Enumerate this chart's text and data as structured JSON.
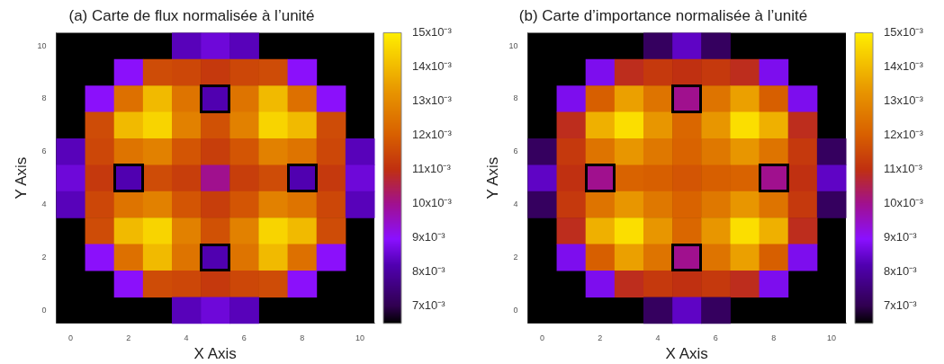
{
  "chart_data": [
    {
      "type": "heatmap",
      "title": "(a) Carte de flux normalisée à l’unité",
      "xlabel": "X Axis",
      "ylabel": "Y Axis",
      "categories": [
        "0",
        null,
        "2",
        null,
        "4",
        null,
        "6",
        null,
        "8",
        null,
        "10"
      ],
      "y_categories": [
        "10",
        null,
        "8",
        null,
        "6",
        null,
        "4",
        null,
        "2",
        null,
        "0"
      ],
      "cells": [
        [
          null,
          null,
          null,
          null,
          0.0083,
          0.0086,
          0.0083,
          null,
          null,
          null,
          null
        ],
        [
          null,
          null,
          0.009,
          0.0116,
          0.0115,
          0.0112,
          0.0115,
          0.0116,
          0.009,
          null,
          null
        ],
        [
          null,
          0.009,
          0.0124,
          0.014,
          0.0125,
          0.0082,
          0.0125,
          0.014,
          0.0124,
          0.009,
          null
        ],
        [
          null,
          0.0116,
          0.014,
          0.0145,
          0.0128,
          0.0117,
          0.0128,
          0.0145,
          0.014,
          0.0116,
          null
        ],
        [
          0.0083,
          0.0115,
          0.0125,
          0.0128,
          0.0118,
          0.0113,
          0.0118,
          0.0128,
          0.0125,
          0.0115,
          0.0083
        ],
        [
          0.0086,
          0.0112,
          0.0082,
          0.0116,
          0.0113,
          0.01,
          0.0113,
          0.0116,
          0.0082,
          0.0112,
          0.0086
        ],
        [
          0.0083,
          0.0115,
          0.0125,
          0.0128,
          0.0118,
          0.0113,
          0.0118,
          0.0128,
          0.0125,
          0.0115,
          0.0083
        ],
        [
          null,
          0.0116,
          0.014,
          0.0145,
          0.0128,
          0.0117,
          0.0128,
          0.0145,
          0.014,
          0.0116,
          null
        ],
        [
          null,
          0.009,
          0.0124,
          0.014,
          0.0125,
          0.0082,
          0.0125,
          0.014,
          0.0124,
          0.009,
          null
        ],
        [
          null,
          null,
          0.009,
          0.0116,
          0.0115,
          0.0112,
          0.0115,
          0.0116,
          0.009,
          null,
          null
        ],
        [
          null,
          null,
          null,
          null,
          0.0083,
          0.0086,
          0.0083,
          null,
          null,
          null,
          null
        ]
      ],
      "clim": [
        0.0065,
        0.015
      ],
      "cticks": [
        {
          "value": 0.007,
          "label": "7x10⁻³"
        },
        {
          "value": 0.008,
          "label": "8x10⁻³"
        },
        {
          "value": 0.009,
          "label": "9x10⁻³"
        },
        {
          "value": 0.01,
          "label": "10x10⁻³"
        },
        {
          "value": 0.011,
          "label": "11x10⁻³"
        },
        {
          "value": 0.012,
          "label": "12x10⁻³"
        },
        {
          "value": 0.013,
          "label": "13x10⁻³"
        },
        {
          "value": 0.014,
          "label": "14x10⁻³"
        },
        {
          "value": 0.015,
          "label": "15x10⁻³"
        }
      ]
    },
    {
      "type": "heatmap",
      "title": "(b) Carte d’importance normalisée à l’unité",
      "xlabel": "X Axis",
      "ylabel": "Y Axis",
      "categories": [
        "0",
        null,
        "2",
        null,
        "4",
        null,
        "6",
        null,
        "8",
        null,
        "10"
      ],
      "y_categories": [
        "10",
        null,
        "8",
        null,
        "6",
        null,
        "4",
        null,
        "2",
        null,
        "0"
      ],
      "cells": [
        [
          null,
          null,
          null,
          null,
          0.0072,
          0.0084,
          0.0072,
          null,
          null,
          null,
          null
        ],
        [
          null,
          null,
          0.0088,
          0.0109,
          0.0112,
          0.011,
          0.0112,
          0.0109,
          0.0088,
          null,
          null
        ],
        [
          null,
          0.0088,
          0.012,
          0.0135,
          0.0125,
          0.01,
          0.0125,
          0.0135,
          0.012,
          0.0088,
          null
        ],
        [
          null,
          0.0109,
          0.0138,
          0.0147,
          0.0133,
          0.0122,
          0.0133,
          0.0147,
          0.0138,
          0.0109,
          null
        ],
        [
          0.0072,
          0.0112,
          0.0125,
          0.0133,
          0.0126,
          0.0121,
          0.0126,
          0.0133,
          0.0125,
          0.0112,
          0.0072
        ],
        [
          0.0084,
          0.011,
          0.01,
          0.0121,
          0.012,
          0.0118,
          0.012,
          0.0121,
          0.01,
          0.011,
          0.0084
        ],
        [
          0.0072,
          0.0112,
          0.0125,
          0.0133,
          0.0126,
          0.0121,
          0.0126,
          0.0133,
          0.0125,
          0.0112,
          0.0072
        ],
        [
          null,
          0.0109,
          0.0138,
          0.0147,
          0.0133,
          0.0122,
          0.0133,
          0.0147,
          0.0138,
          0.0109,
          null
        ],
        [
          null,
          0.0088,
          0.012,
          0.0135,
          0.0125,
          0.01,
          0.0125,
          0.0135,
          0.012,
          0.0088,
          null
        ],
        [
          null,
          null,
          0.0088,
          0.0109,
          0.0112,
          0.011,
          0.0112,
          0.0109,
          0.0088,
          null,
          null
        ],
        [
          null,
          null,
          null,
          null,
          0.0072,
          0.0084,
          0.0072,
          null,
          null,
          null,
          null
        ]
      ],
      "clim": [
        0.0065,
        0.015
      ],
      "cticks": [
        {
          "value": 0.007,
          "label": "7x10⁻³"
        },
        {
          "value": 0.008,
          "label": "8x10⁻³"
        },
        {
          "value": 0.009,
          "label": "9x10⁻³"
        },
        {
          "value": 0.01,
          "label": "10x10⁻³"
        },
        {
          "value": 0.011,
          "label": "11x10⁻³"
        },
        {
          "value": 0.012,
          "label": "12x10⁻³"
        },
        {
          "value": 0.013,
          "label": "13x10⁻³"
        },
        {
          "value": 0.014,
          "label": "14x10⁻³"
        },
        {
          "value": 0.015,
          "label": "15x10⁻³"
        }
      ]
    }
  ]
}
